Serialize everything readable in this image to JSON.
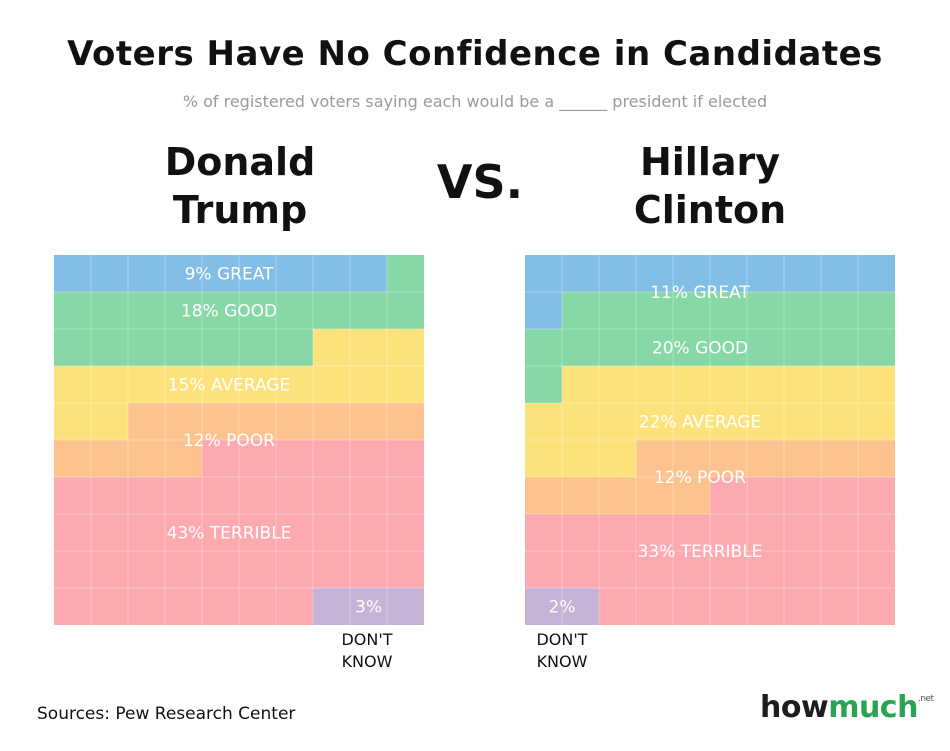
{
  "title": "Voters Have No Confidence in Candidates",
  "subtitle": "% of registered voters saying each would be a ______ president if elected",
  "vs_label": "VS.",
  "candidates": {
    "trump": {
      "name_line1": "Donald",
      "name_line2": "Trump"
    },
    "clinton": {
      "name_line1": "Hillary",
      "name_line2": "Clinton"
    }
  },
  "dont_know": {
    "line1": "DON'T",
    "line2": "KNOW"
  },
  "source": "Sources: Pew Research Center",
  "logo": {
    "part1": "how",
    "part2": "much",
    "suffix": ".net"
  },
  "colors": {
    "great": "#82bde6",
    "good": "#86d9a6",
    "average": "#fde17a",
    "poor": "#fcc38e",
    "terrible": "#fca9b0",
    "dont_know": "#c6b3d6"
  },
  "chart_data": [
    {
      "type": "waffle",
      "title": "Donald Trump",
      "grid": [
        10,
        10
      ],
      "categories": [
        "Great",
        "Good",
        "Average",
        "Poor",
        "Terrible",
        "Don't know"
      ],
      "values": [
        9,
        18,
        15,
        12,
        43,
        3
      ],
      "labels": [
        "9% GREAT",
        "18% GOOD",
        "15% AVERAGE",
        "12% POOR",
        "43% TERRIBLE",
        "3%"
      ],
      "keys": [
        "great",
        "good",
        "average",
        "poor",
        "terrible",
        "dont_know"
      ],
      "dont_know_position": "bottom-right"
    },
    {
      "type": "waffle",
      "title": "Hillary Clinton",
      "grid": [
        10,
        10
      ],
      "categories": [
        "Great",
        "Good",
        "Average",
        "Poor",
        "Terrible",
        "Don't know"
      ],
      "values": [
        11,
        20,
        22,
        12,
        33,
        2
      ],
      "labels": [
        "11% GREAT",
        "20% GOOD",
        "22% AVERAGE",
        "12% POOR",
        "33% TERRIBLE",
        "2%"
      ],
      "keys": [
        "great",
        "good",
        "average",
        "poor",
        "terrible",
        "dont_know"
      ],
      "dont_know_position": "bottom-left"
    }
  ]
}
